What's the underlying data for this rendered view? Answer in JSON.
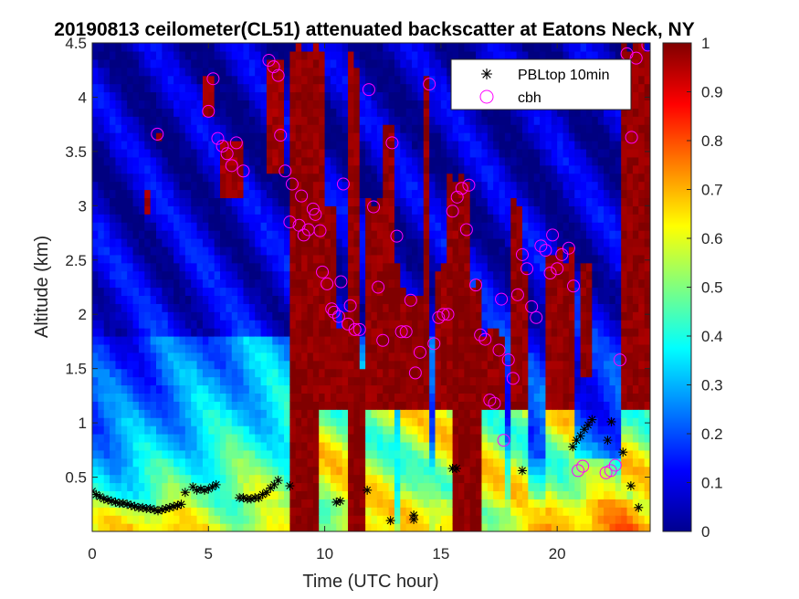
{
  "chart_data": {
    "type": "heatmap",
    "title": "20190813 ceilometer(CL51) attenuated backscatter at Eatons Neck, NY",
    "xlabel": "Time (UTC hour)",
    "ylabel": "Altitude (km)",
    "xlim": [
      0,
      24
    ],
    "ylim": [
      0,
      4.5
    ],
    "xticks": [
      0,
      5,
      10,
      15,
      20
    ],
    "xtick_labels": [
      "0",
      "5",
      "10",
      "15",
      "20"
    ],
    "yticks": [
      0.5,
      1,
      1.5,
      2,
      2.5,
      3,
      3.5,
      4,
      4.5
    ],
    "ytick_labels": [
      "0.5",
      "1",
      "1.5",
      "2",
      "2.5",
      "3",
      "3.5",
      "4",
      "4.5"
    ],
    "colorbar": {
      "colormap": "jet",
      "clim": [
        0,
        1
      ],
      "ticks": [
        0,
        0.1,
        0.2,
        0.3,
        0.4,
        0.5,
        0.6,
        0.7,
        0.8,
        0.9,
        1
      ],
      "tick_labels": [
        "0",
        "0.1",
        "0.2",
        "0.3",
        "0.4",
        "0.5",
        "0.6",
        "0.7",
        "0.8",
        "0.9",
        "1"
      ]
    },
    "legend": {
      "location": "top-right",
      "entries": [
        "PBLtop 10min",
        "cbh"
      ]
    },
    "series": [
      {
        "name": "PBLtop 10min",
        "marker": "asterisk",
        "color": "#000000",
        "points": [
          [
            0.0,
            0.37
          ],
          [
            0.17,
            0.34
          ],
          [
            0.33,
            0.32
          ],
          [
            0.5,
            0.3
          ],
          [
            0.67,
            0.29
          ],
          [
            0.83,
            0.28
          ],
          [
            1.0,
            0.27
          ],
          [
            1.17,
            0.26
          ],
          [
            1.33,
            0.26
          ],
          [
            1.5,
            0.25
          ],
          [
            1.67,
            0.24
          ],
          [
            1.83,
            0.23
          ],
          [
            2.0,
            0.22
          ],
          [
            2.17,
            0.22
          ],
          [
            2.33,
            0.21
          ],
          [
            2.5,
            0.21
          ],
          [
            2.67,
            0.2
          ],
          [
            2.83,
            0.19
          ],
          [
            3.0,
            0.2
          ],
          [
            3.17,
            0.21
          ],
          [
            3.33,
            0.22
          ],
          [
            3.5,
            0.23
          ],
          [
            3.67,
            0.24
          ],
          [
            3.83,
            0.25
          ],
          [
            4.0,
            0.36
          ],
          [
            4.33,
            0.41
          ],
          [
            4.5,
            0.38
          ],
          [
            4.67,
            0.39
          ],
          [
            4.83,
            0.38
          ],
          [
            5.0,
            0.39
          ],
          [
            5.17,
            0.41
          ],
          [
            5.33,
            0.43
          ],
          [
            6.33,
            0.31
          ],
          [
            6.5,
            0.31
          ],
          [
            6.67,
            0.3
          ],
          [
            6.83,
            0.3
          ],
          [
            7.0,
            0.31
          ],
          [
            7.17,
            0.31
          ],
          [
            7.33,
            0.34
          ],
          [
            7.5,
            0.36
          ],
          [
            7.67,
            0.4
          ],
          [
            7.83,
            0.43
          ],
          [
            8.0,
            0.47
          ],
          [
            8.5,
            0.42
          ],
          [
            10.5,
            0.27
          ],
          [
            10.67,
            0.28
          ],
          [
            11.83,
            0.38
          ],
          [
            12.83,
            0.1
          ],
          [
            13.83,
            0.11
          ],
          [
            13.83,
            0.15
          ],
          [
            15.5,
            0.58
          ],
          [
            15.67,
            0.58
          ],
          [
            18.5,
            0.56
          ],
          [
            20.67,
            0.78
          ],
          [
            20.83,
            0.84
          ],
          [
            21.0,
            0.88
          ],
          [
            21.17,
            0.94
          ],
          [
            21.33,
            0.98
          ],
          [
            21.5,
            1.03
          ],
          [
            22.17,
            0.84
          ],
          [
            22.33,
            1.01
          ],
          [
            22.83,
            0.73
          ],
          [
            23.17,
            0.42
          ],
          [
            23.5,
            0.22
          ]
        ]
      },
      {
        "name": "cbh",
        "marker": "circle",
        "color": "#ff00ff",
        "points": [
          [
            2.8,
            3.66
          ],
          [
            5.0,
            3.87
          ],
          [
            5.2,
            4.17
          ],
          [
            5.4,
            3.62
          ],
          [
            5.6,
            3.55
          ],
          [
            5.8,
            3.48
          ],
          [
            6.0,
            3.37
          ],
          [
            6.2,
            3.58
          ],
          [
            6.5,
            3.32
          ],
          [
            7.6,
            4.34
          ],
          [
            7.8,
            4.28
          ],
          [
            8.0,
            4.2
          ],
          [
            8.1,
            3.65
          ],
          [
            8.3,
            3.32
          ],
          [
            8.5,
            2.85
          ],
          [
            8.6,
            3.2
          ],
          [
            8.9,
            2.82
          ],
          [
            9.0,
            3.09
          ],
          [
            9.1,
            2.73
          ],
          [
            9.3,
            2.78
          ],
          [
            9.5,
            2.97
          ],
          [
            9.6,
            2.92
          ],
          [
            9.8,
            2.77
          ],
          [
            9.9,
            2.39
          ],
          [
            10.1,
            2.28
          ],
          [
            10.3,
            2.05
          ],
          [
            10.4,
            2.02
          ],
          [
            10.6,
            1.98
          ],
          [
            10.7,
            2.3
          ],
          [
            10.8,
            3.2
          ],
          [
            11.0,
            1.91
          ],
          [
            11.1,
            2.08
          ],
          [
            11.3,
            1.86
          ],
          [
            11.5,
            1.86
          ],
          [
            11.9,
            4.07
          ],
          [
            12.1,
            2.99
          ],
          [
            12.3,
            2.25
          ],
          [
            12.5,
            1.76
          ],
          [
            12.9,
            3.58
          ],
          [
            13.1,
            2.72
          ],
          [
            13.3,
            1.84
          ],
          [
            13.5,
            1.84
          ],
          [
            13.7,
            2.13
          ],
          [
            13.9,
            1.46
          ],
          [
            14.1,
            1.65
          ],
          [
            14.5,
            4.12
          ],
          [
            14.7,
            1.73
          ],
          [
            14.9,
            1.97
          ],
          [
            15.1,
            2.0
          ],
          [
            15.3,
            2.0
          ],
          [
            15.5,
            2.95
          ],
          [
            15.7,
            3.08
          ],
          [
            15.9,
            3.16
          ],
          [
            16.1,
            2.78
          ],
          [
            16.2,
            3.19
          ],
          [
            16.5,
            2.27
          ],
          [
            16.7,
            1.81
          ],
          [
            16.9,
            1.77
          ],
          [
            17.1,
            1.21
          ],
          [
            17.3,
            1.18
          ],
          [
            17.5,
            1.67
          ],
          [
            17.6,
            2.14
          ],
          [
            17.7,
            0.84
          ],
          [
            17.9,
            1.58
          ],
          [
            18.1,
            1.41
          ],
          [
            18.3,
            2.18
          ],
          [
            18.5,
            2.55
          ],
          [
            18.7,
            2.42
          ],
          [
            18.9,
            2.07
          ],
          [
            19.1,
            1.97
          ],
          [
            19.3,
            2.63
          ],
          [
            19.5,
            2.59
          ],
          [
            19.7,
            2.38
          ],
          [
            19.8,
            2.73
          ],
          [
            20.0,
            2.42
          ],
          [
            20.2,
            2.55
          ],
          [
            20.5,
            2.61
          ],
          [
            20.7,
            2.26
          ],
          [
            20.9,
            0.56
          ],
          [
            21.1,
            0.6
          ],
          [
            22.1,
            0.54
          ],
          [
            22.3,
            0.56
          ],
          [
            22.5,
            0.61
          ],
          [
            22.7,
            1.58
          ],
          [
            23.0,
            4.4
          ],
          [
            23.2,
            3.63
          ],
          [
            23.4,
            4.36
          ],
          [
            23.9,
            4.48
          ]
        ]
      }
    ]
  }
}
